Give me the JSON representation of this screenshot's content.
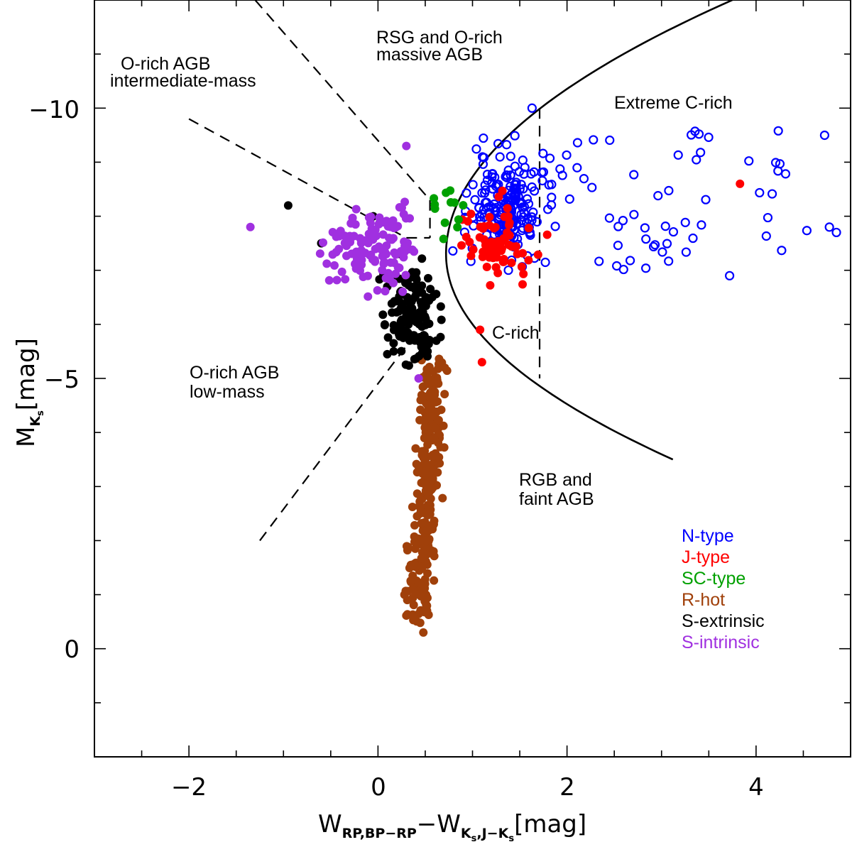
{
  "chart_data": {
    "type": "scatter",
    "xlabel": {
      "main": "W",
      "sub1": "RP,BP−RP",
      "minus": "−W",
      "sub2": "K",
      "sub2sub": "s",
      "sub2rest": ",J−K",
      "sub2sub2": "s",
      "unit": "[mag]"
    },
    "ylabel": {
      "main": "M",
      "sub": "K",
      "subsub": "s",
      "unit": "[mag]"
    },
    "xlim": [
      -3.0,
      5.0
    ],
    "ylim": [
      2.0,
      -12.0
    ],
    "x_ticks": [
      "−2",
      "0",
      "2",
      "4"
    ],
    "x_tick_values": [
      -2,
      0,
      2,
      4
    ],
    "y_ticks": [
      "0",
      "−5",
      "−10"
    ],
    "y_tick_values": [
      0,
      -5,
      -10
    ],
    "regions": [
      {
        "text": [
          "RSG and O-rich",
          "massive AGB"
        ]
      },
      {
        "text": [
          "O-rich AGB",
          "intermediate-mass"
        ]
      },
      {
        "text": [
          "Extreme C-rich"
        ]
      },
      {
        "text": [
          "C-rich"
        ]
      },
      {
        "text": [
          "O-rich AGB",
          "low-mass"
        ]
      },
      {
        "text": [
          "RGB and",
          "faint AGB"
        ]
      }
    ],
    "boundaries": {
      "parabola": {
        "vertex_x": 0.72,
        "vertex_y": -7.3,
        "x_top": 3.75,
        "y_top": -12.0,
        "x_bottom": 3.12,
        "y_bottom": -3.5
      },
      "dashed_lines": [
        [
          [
            -1.3,
            -12.0
          ],
          [
            0.55,
            -8.3
          ]
        ],
        [
          [
            -2.0,
            -9.8
          ],
          [
            0.3,
            -7.6
          ]
        ],
        [
          [
            0.3,
            -7.6
          ],
          [
            0.55,
            -7.6
          ]
        ],
        [
          [
            0.55,
            -8.3
          ],
          [
            0.55,
            -7.6
          ]
        ],
        [
          [
            -1.25,
            -2.0
          ],
          [
            0.3,
            -5.6
          ]
        ],
        [
          [
            1.71,
            -10.0
          ],
          [
            1.71,
            -5.0
          ]
        ]
      ]
    },
    "series": [
      {
        "name": "N-type",
        "color": "#0000ff",
        "marker": "open-circle",
        "count": 260
      },
      {
        "name": "J-type",
        "color": "#ff0000",
        "marker": "filled-circle",
        "count": 70
      },
      {
        "name": "SC-type",
        "color": "#00a000",
        "marker": "filled-circle",
        "count": 12
      },
      {
        "name": "R-hot",
        "color": "#a0400a",
        "marker": "filled-circle",
        "count": 290
      },
      {
        "name": "S-extrinsic",
        "color": "#000000",
        "marker": "filled-circle",
        "count": 130
      },
      {
        "name": "S-intrinsic",
        "color": "#a030e0",
        "marker": "filled-circle",
        "count": 125
      }
    ]
  }
}
